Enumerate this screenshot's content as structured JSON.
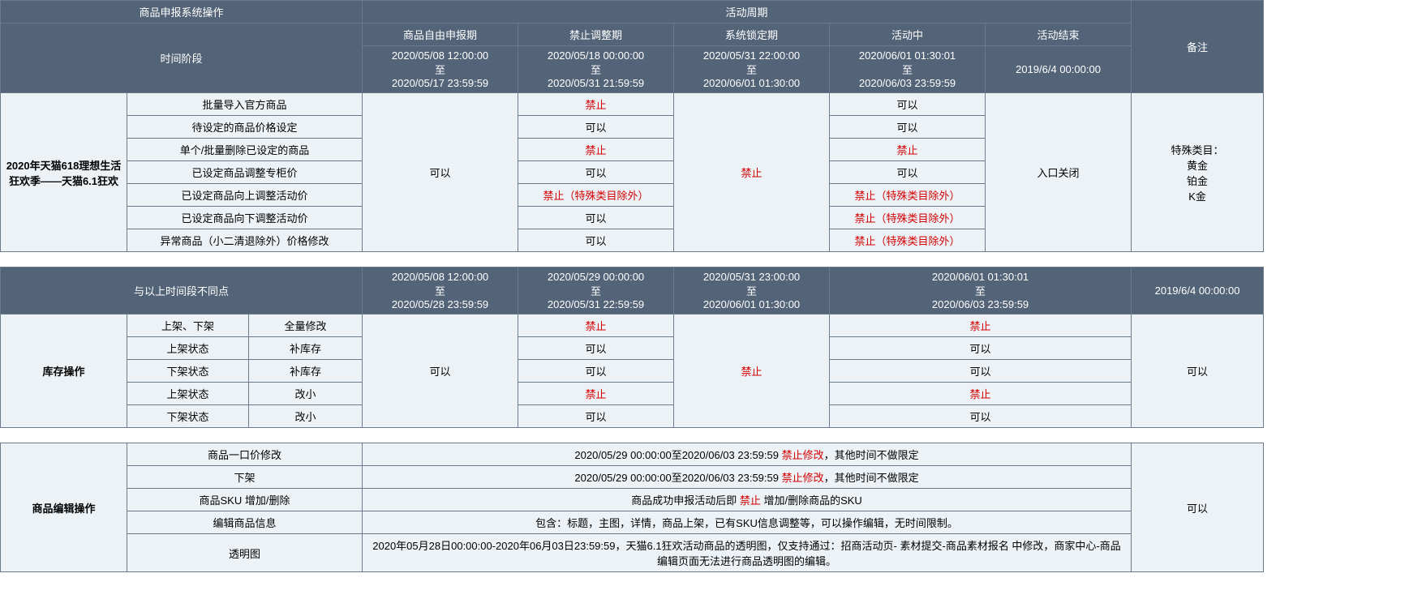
{
  "hdr": {
    "sys_op": "商品申报系统操作",
    "act_cycle": "活动周期",
    "remark": "备注",
    "phase": "时间阶段",
    "p1": "商品自由申报期",
    "p2": "禁止调整期",
    "p3": "系统锁定期",
    "p4": "活动中",
    "p5": "活动结束",
    "d1": "2020/05/08 12:00:00\n至\n2020/05/17 23:59:59",
    "d2": "2020/05/18 00:00:00\n至\n2020/05/31 21:59:59",
    "d3": "2020/05/31 22:00:00\n至\n2020/06/01 01:30:00",
    "d4": "2020/06/01 01:30:01\n至\n2020/06/03 23:59:59",
    "d5": "2019/6/4 00:00:00"
  },
  "sec1": {
    "title": "2020年天猫618理想生活狂欢季——天猫6.1狂欢",
    "rows": {
      "r1": "批量导入官方商品",
      "r2": "待设定的商品价格设定",
      "r3": "单个/批量删除已设定的商品",
      "r4": "已设定商品调整专柜价",
      "r5": "已设定商品向上调整活动价",
      "r6": "已设定商品向下调整活动价",
      "r7": "异常商品（小二清退除外）价格修改"
    },
    "col_free": "可以",
    "p2": {
      "r1": "禁止",
      "r2": "可以",
      "r3": "禁止",
      "r4": "可以",
      "r5": "禁止（特殊类目除外）",
      "r6": "可以",
      "r7": "可以"
    },
    "p3": "禁止",
    "p4": {
      "r1": "可以",
      "r2": "可以",
      "r3": "禁止",
      "r4": "可以",
      "r5": "禁止（特殊类目除外）",
      "r6": "禁止（特殊类目除外）",
      "r7": "禁止（特殊类目除外）"
    },
    "p5": "入口关闭",
    "remark": "特殊类目：\n黄金\n铂金\nK金"
  },
  "sec2": {
    "hdr_diff": "与以上时间段不同点",
    "d1": "2020/05/08 12:00:00\n至\n2020/05/28 23:59:59",
    "d2": "2020/05/29 00:00:00\n至\n2020/05/31 22:59:59",
    "d3": "2020/05/31 23:00:00\n至\n2020/06/01 01:30:00",
    "d4": "2020/06/01 01:30:01\n至\n2020/06/03 23:59:59",
    "d5": "2019/6/4 00:00:00",
    "title": "库存操作",
    "rows": {
      "r1a": "上架、下架",
      "r1b": "全量修改",
      "r2a": "上架状态",
      "r2b": "补库存",
      "r3a": "下架状态",
      "r3b": "补库存",
      "r4a": "上架状态",
      "r4b": "改小",
      "r5a": "下架状态",
      "r5b": "改小"
    },
    "col_free": "可以",
    "p2": {
      "r1": "禁止",
      "r2": "可以",
      "r3": "可以",
      "r4": "禁止",
      "r5": "可以"
    },
    "p3": "禁止",
    "p4": {
      "r1": "禁止",
      "r2": "可以",
      "r3": "可以",
      "r4": "禁止",
      "r5": "可以"
    },
    "p5": "可以"
  },
  "sec3": {
    "title": "商品编辑操作",
    "rows": {
      "r1": "商品一口价修改",
      "r2": "下架",
      "r3": "商品SKU 增加/删除",
      "r4": "编辑商品信息",
      "r5": "透明图"
    },
    "r1t_a": "2020/05/29 00:00:00至2020/06/03 23:59:59 ",
    "r1t_b": "禁止修改",
    "r1t_c": "，其他时间不做限定",
    "r2t_a": "2020/05/29 00:00:00至2020/06/03 23:59:59 ",
    "r2t_b": "禁止修改",
    "r2t_c": "，其他时间不做限定",
    "r3t_a": "商品成功申报活动后即 ",
    "r3t_b": "禁止",
    "r3t_c": " 增加/删除商品的SKU",
    "r4t": "包含：标题，主图，详情，商品上架，已有SKU信息调整等，可以操作编辑，无时间限制。",
    "r5t": "2020年05月28日00:00:00-2020年06月03日23:59:59，天猫6.1狂欢活动商品的透明图，仅支持通过：招商活动页- 素材提交-商品素材报名  中修改，商家中心-商品编辑页面无法进行商品透明图的编辑。",
    "p5": "可以"
  }
}
